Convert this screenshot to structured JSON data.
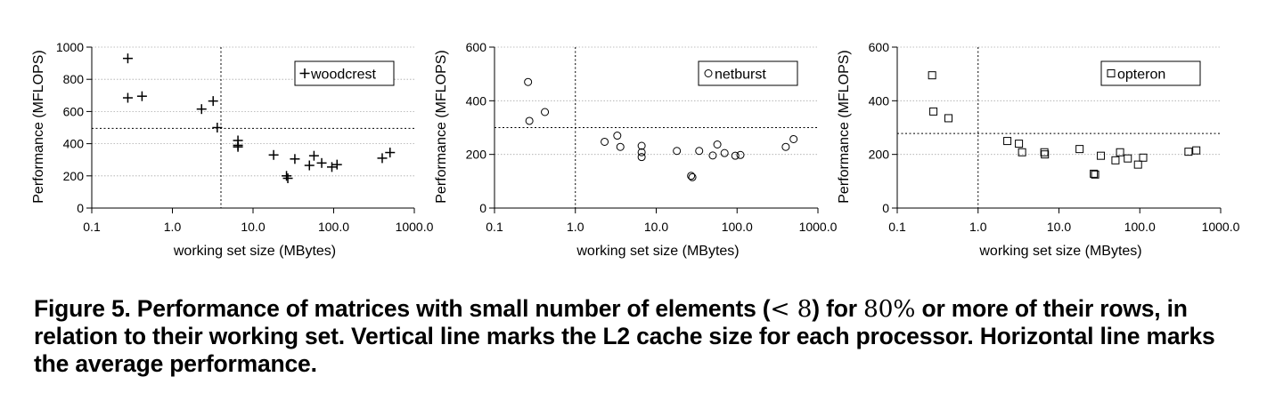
{
  "chart_data": [
    {
      "type": "scatter",
      "xscale": "log",
      "xlim": [
        0.1,
        1000.0
      ],
      "ylim": [
        0,
        1000
      ],
      "xticks": [
        "0.1",
        "1.0",
        "10.0",
        "100.0",
        "1000.0"
      ],
      "yticks": [
        "0",
        "200",
        "400",
        "600",
        "800",
        "1000"
      ],
      "xlabel": "working set size (MBytes)",
      "ylabel": "Performance (MFLOPS)",
      "grid": true,
      "legend": {
        "position": "top-right",
        "label": "woodcrest"
      },
      "marker": "plus",
      "cache_line_x": 4.0,
      "average_line_y": 495,
      "series": [
        {
          "name": "woodcrest",
          "x": [
            0.28,
            0.28,
            0.42,
            2.3,
            3.2,
            3.6,
            6.5,
            6.5,
            6.5,
            18,
            26,
            27,
            33,
            50,
            57,
            71,
            95,
            110,
            400,
            500
          ],
          "y": [
            930,
            685,
            695,
            615,
            665,
            500,
            420,
            390,
            380,
            330,
            200,
            185,
            305,
            265,
            325,
            280,
            255,
            270,
            310,
            345
          ]
        }
      ]
    },
    {
      "type": "scatter",
      "xscale": "log",
      "xlim": [
        0.1,
        1000.0
      ],
      "ylim": [
        0,
        600
      ],
      "xticks": [
        "0.1",
        "1.0",
        "10.0",
        "100.0",
        "1000.0"
      ],
      "yticks": [
        "0",
        "200",
        "400",
        "600"
      ],
      "xlabel": "working set size (MBytes)",
      "ylabel": "Performance (MFLOPS)",
      "grid": true,
      "legend": {
        "position": "top-right",
        "label": "netburst"
      },
      "marker": "circle",
      "cache_line_x": 1.0,
      "average_line_y": 300,
      "series": [
        {
          "name": "netburst",
          "x": [
            0.26,
            0.27,
            0.42,
            2.3,
            3.3,
            3.6,
            6.6,
            6.6,
            6.6,
            18,
            27,
            28,
            34,
            50,
            57,
            70,
            95,
            110,
            400,
            500
          ],
          "y": [
            470,
            325,
            358,
            247,
            270,
            228,
            232,
            208,
            190,
            213,
            120,
            115,
            213,
            196,
            237,
            205,
            195,
            198,
            228,
            257
          ]
        }
      ]
    },
    {
      "type": "scatter",
      "xscale": "log",
      "xlim": [
        0.1,
        1000.0
      ],
      "ylim": [
        0,
        600
      ],
      "xticks": [
        "0.1",
        "1.0",
        "10.0",
        "100.0",
        "1000.0"
      ],
      "yticks": [
        "0",
        "200",
        "400",
        "600"
      ],
      "xlabel": "working set size (MBytes)",
      "ylabel": "Performance (MFLOPS)",
      "grid": true,
      "legend": {
        "position": "top-right",
        "label": "opteron"
      },
      "marker": "square",
      "cache_line_x": 1.0,
      "average_line_y": 278,
      "series": [
        {
          "name": "opteron",
          "x": [
            0.27,
            0.28,
            0.43,
            2.3,
            3.2,
            3.5,
            6.6,
            6.7,
            18,
            27,
            28,
            33,
            50,
            57,
            71,
            95,
            110,
            400,
            500
          ],
          "y": [
            495,
            360,
            335,
            250,
            240,
            208,
            208,
            200,
            220,
            128,
            125,
            195,
            178,
            208,
            185,
            162,
            188,
            210,
            215
          ]
        }
      ]
    }
  ],
  "caption": {
    "prefix": "Figure 5. Performance of matrices with small number of elements (",
    "math_lt": "< 8",
    "middle": ") for ",
    "math_pct": "80%",
    "suffix": " or more of their rows, in relation to their working set. Vertical line marks the L2 cache size for each processor. Horizontal line marks the average performance."
  }
}
